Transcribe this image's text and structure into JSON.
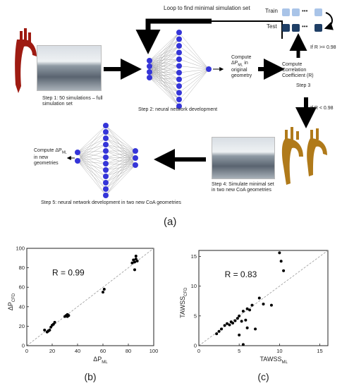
{
  "top": {
    "loop_label": "Loop to find minimal simulation set",
    "step1": "Step 1: 50 simulations – full simulation set",
    "step2": "Step 2: neural network development",
    "compute_dp": "Compute ΔP",
    "compute_dp_sub": "ML",
    "compute_dp_rest": "in original geometry",
    "compute_r": "Compute Correlation Coefficient (R)",
    "step3": "Step 3",
    "train": "Train",
    "test": "Test",
    "dots": "•••",
    "if_ge": "If R >= 0.98",
    "if_lt": "If R < 0.98",
    "step4": "Step 4: Simulate minimal set in two new CoA geometries",
    "compute_new": "Compute ΔP",
    "compute_new_sub": "ML",
    "compute_new_rest": "in new geometries",
    "step5": "Step 5: neural network development in two new CoA geometries",
    "panel_a": "(a)",
    "colors": {
      "train": "#a9c4e8",
      "test": "#1f3f66",
      "node": "#3535d8",
      "arrow": "#000000"
    }
  },
  "chart_data": [
    {
      "type": "scatter",
      "panel": "(b)",
      "annotation": "R = 0.99",
      "xlabel": "ΔP",
      "xlabel_sub": "ML",
      "ylabel": "ΔP",
      "ylabel_sub": "CFD",
      "xlim": [
        0,
        100
      ],
      "ylim": [
        0,
        100
      ],
      "xticks": [
        0,
        20,
        40,
        60,
        80,
        100
      ],
      "yticks": [
        0,
        20,
        40,
        60,
        80,
        100
      ],
      "identity_line": true,
      "points": [
        [
          14,
          16
        ],
        [
          16,
          14
        ],
        [
          17,
          15
        ],
        [
          18,
          16
        ],
        [
          19,
          19
        ],
        [
          20,
          21
        ],
        [
          21,
          22
        ],
        [
          22,
          24
        ],
        [
          30,
          30
        ],
        [
          31,
          31
        ],
        [
          32,
          32
        ],
        [
          32,
          30
        ],
        [
          33,
          31
        ],
        [
          60,
          55
        ],
        [
          61,
          58
        ],
        [
          83,
          85
        ],
        [
          84,
          88
        ],
        [
          85,
          86
        ],
        [
          85,
          78
        ],
        [
          86,
          92
        ],
        [
          86,
          89
        ],
        [
          87,
          87
        ]
      ]
    },
    {
      "type": "scatter",
      "panel": "(c)",
      "annotation": "R = 0.83",
      "xlabel": "TAWSS",
      "xlabel_sub": "ML",
      "ylabel": "TAWSS",
      "ylabel_sub": "CFD",
      "xlim": [
        0,
        16
      ],
      "ylim": [
        0,
        16
      ],
      "xticks": [
        0,
        5,
        10,
        15
      ],
      "yticks": [
        0,
        5,
        10,
        15
      ],
      "identity_line": true,
      "points": [
        [
          2.2,
          2.0
        ],
        [
          2.5,
          2.4
        ],
        [
          2.8,
          2.8
        ],
        [
          3.2,
          3.4
        ],
        [
          3.5,
          3.7
        ],
        [
          3.8,
          3.5
        ],
        [
          4.0,
          4.0
        ],
        [
          4.2,
          3.8
        ],
        [
          4.5,
          4.2
        ],
        [
          4.8,
          4.6
        ],
        [
          5.0,
          5.0
        ],
        [
          5.0,
          1.8
        ],
        [
          5.3,
          4.1
        ],
        [
          5.5,
          5.8
        ],
        [
          5.5,
          0.2
        ],
        [
          5.8,
          4.3
        ],
        [
          6.0,
          6.2
        ],
        [
          6.0,
          3.0
        ],
        [
          6.3,
          6.0
        ],
        [
          6.6,
          6.8
        ],
        [
          7.0,
          2.8
        ],
        [
          7.5,
          8.0
        ],
        [
          8.0,
          7.0
        ],
        [
          9.0,
          6.8
        ],
        [
          10.0,
          15.6
        ],
        [
          10.2,
          14.2
        ],
        [
          10.5,
          12.6
        ]
      ]
    }
  ]
}
